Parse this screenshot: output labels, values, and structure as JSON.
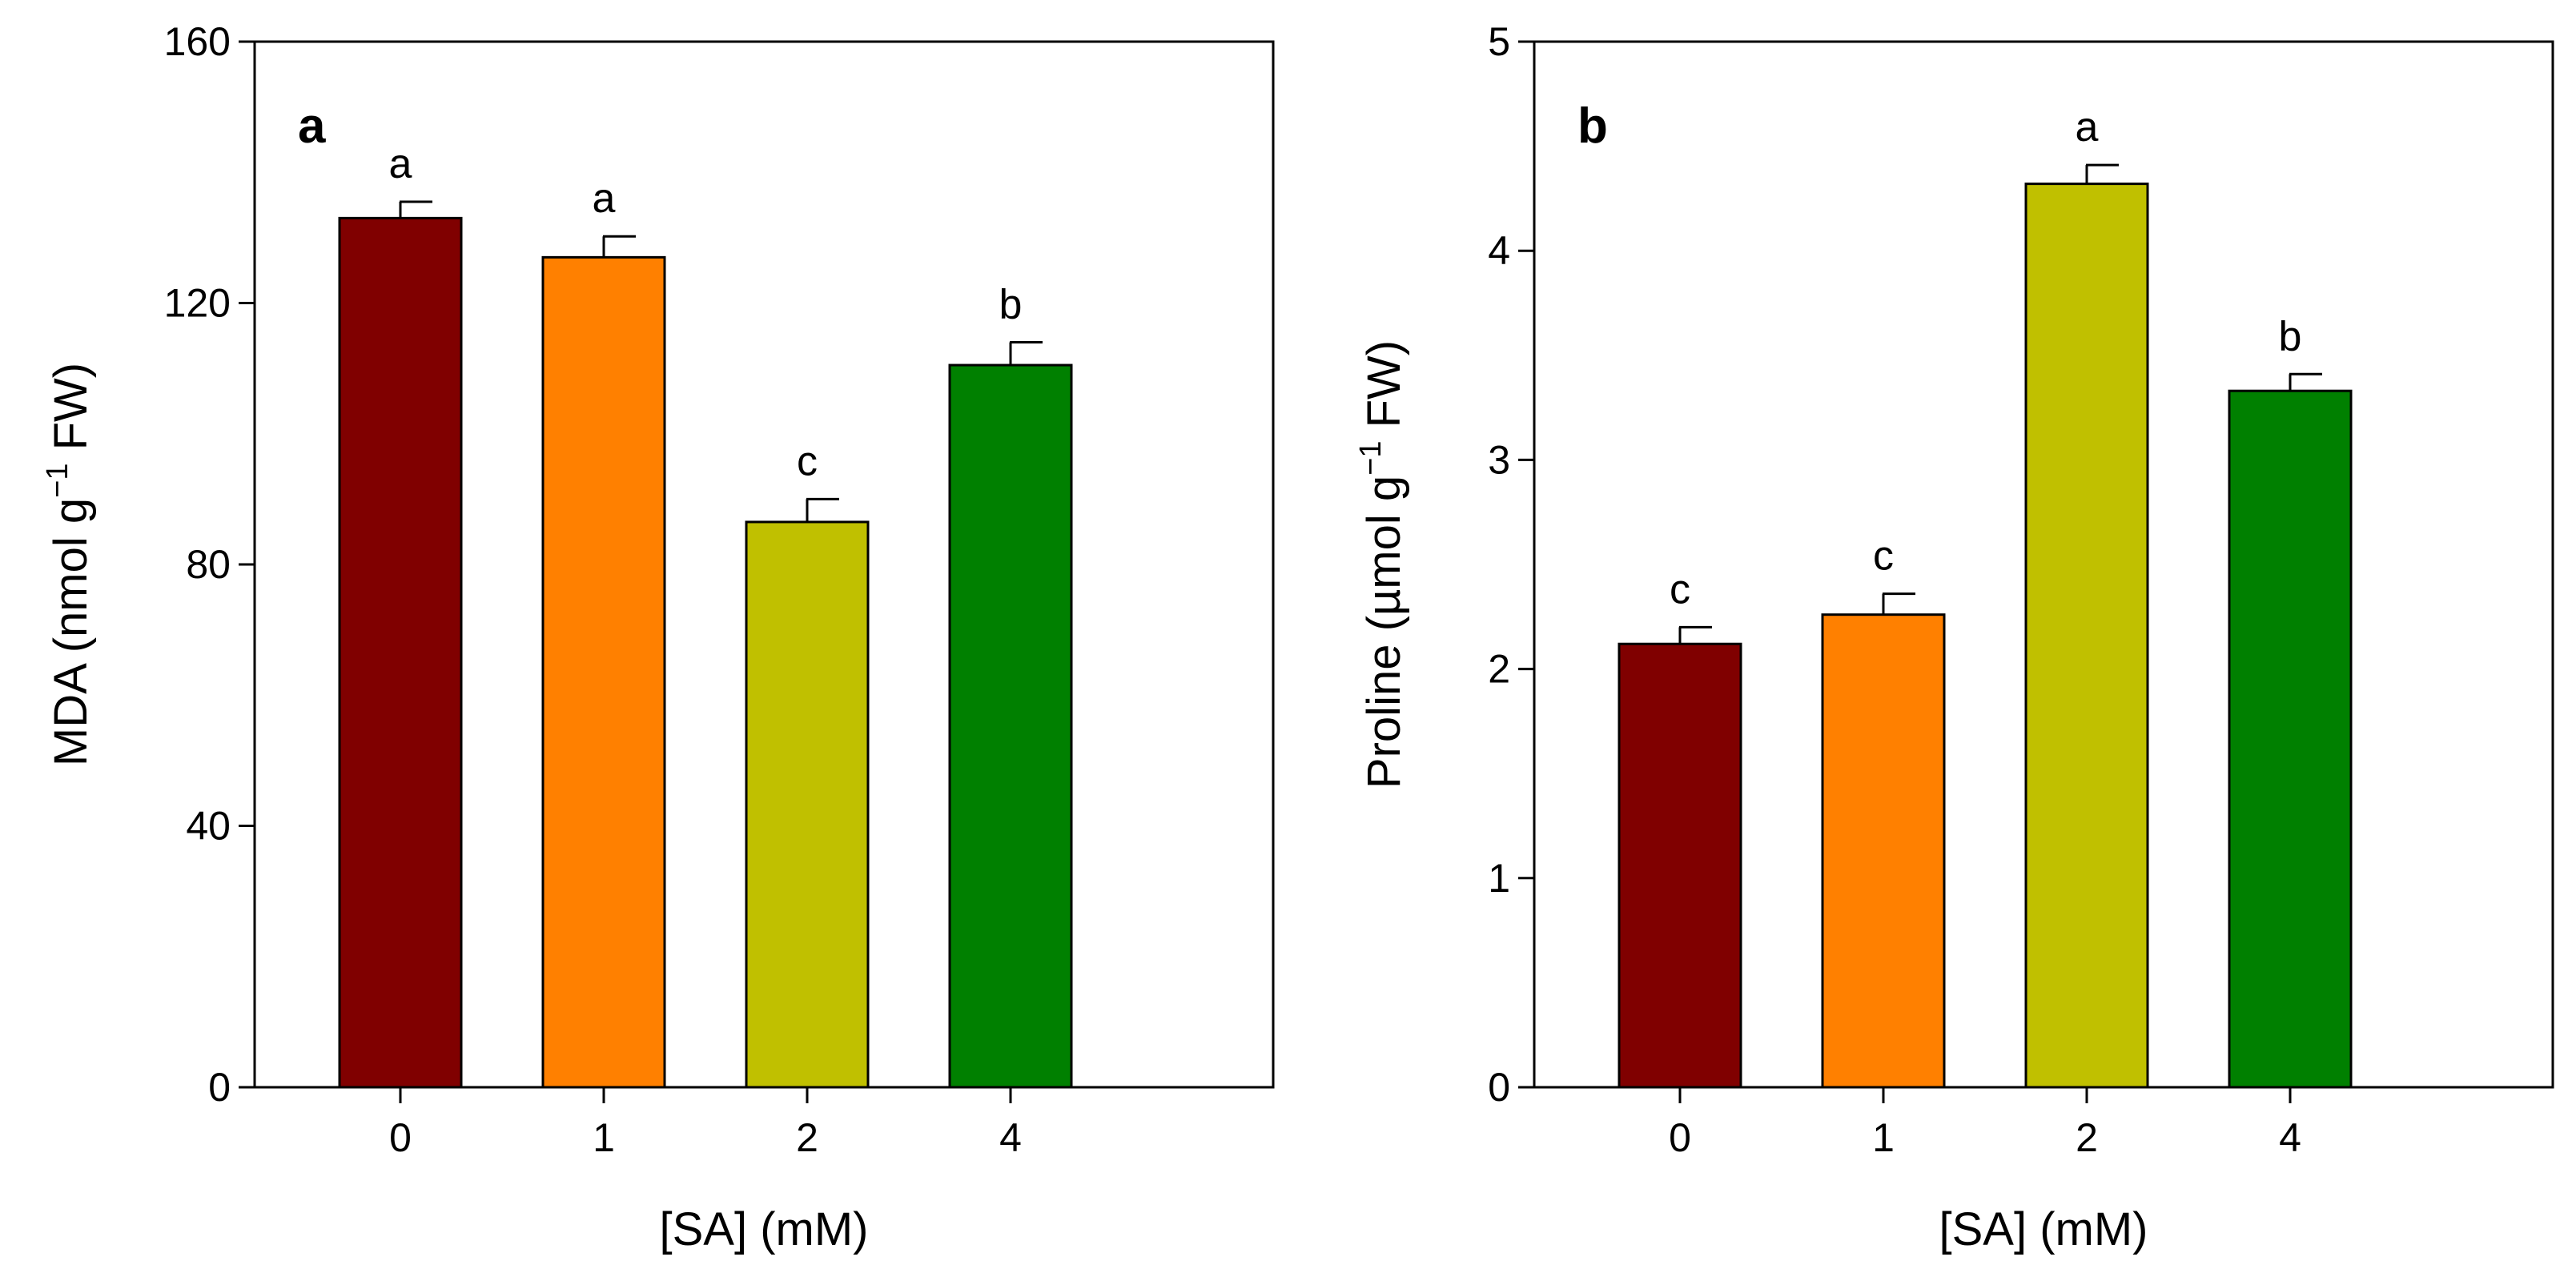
{
  "chart_data": [
    {
      "type": "bar",
      "panel_label": "a",
      "categories": [
        "0",
        "1",
        "2",
        "4"
      ],
      "values": [
        133,
        127,
        86.5,
        110.5
      ],
      "errors": [
        2.5,
        3.2,
        3.5,
        3.5
      ],
      "significance": [
        "a",
        "a",
        "c",
        "b"
      ],
      "colors": [
        "#800000",
        "#ff8000",
        "#c0c000",
        "#008000"
      ],
      "xlabel": "[SA] (mM)",
      "ylabel_main": "MDA (nmol g",
      "ylabel_sup": "−1",
      "ylabel_end": " FW)",
      "ylim": [
        0,
        160
      ],
      "yticks": [
        0,
        40,
        80,
        120,
        160
      ],
      "grid": false
    },
    {
      "type": "bar",
      "panel_label": "b",
      "categories": [
        "0",
        "1",
        "2",
        "4"
      ],
      "values": [
        2.12,
        2.26,
        4.32,
        3.33
      ],
      "errors": [
        0.08,
        0.1,
        0.09,
        0.08
      ],
      "significance": [
        "c",
        "c",
        "a",
        "b"
      ],
      "colors": [
        "#800000",
        "#ff8000",
        "#c0c000",
        "#008000"
      ],
      "xlabel": "[SA] (mM)",
      "ylabel_main": "Proline (µmol g",
      "ylabel_sup": "−1",
      "ylabel_end": " FW)",
      "ylim": [
        0,
        5
      ],
      "yticks": [
        0,
        1,
        2,
        3,
        4,
        5
      ],
      "grid": false
    }
  ]
}
